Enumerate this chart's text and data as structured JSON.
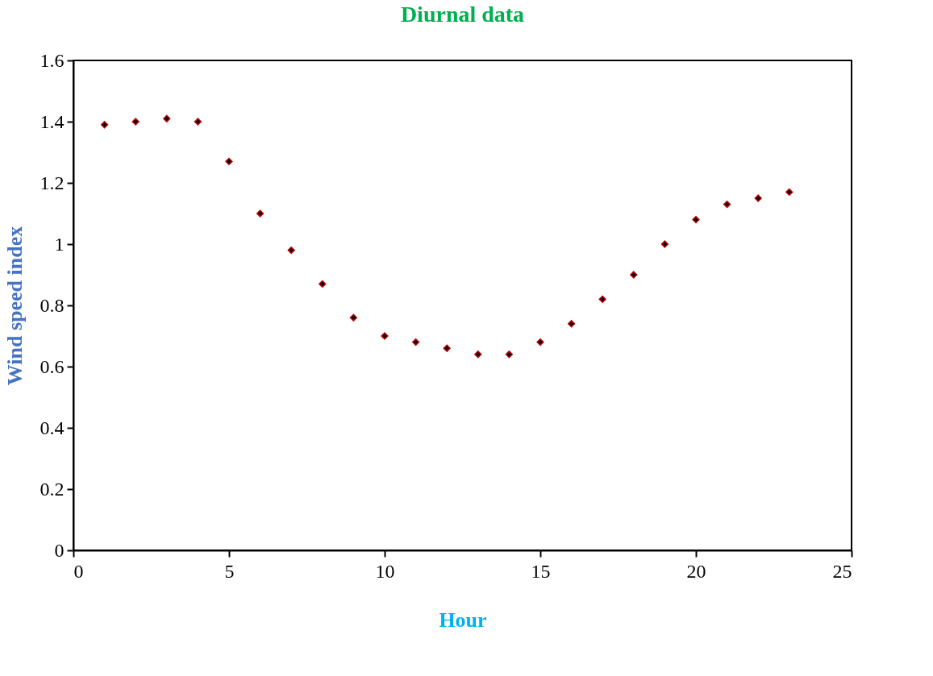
{
  "chart_data": {
    "type": "scatter",
    "title": "Diurnal data",
    "xlabel": "Hour",
    "ylabel": "Wind speed index",
    "x": [
      1,
      2,
      3,
      4,
      5,
      6,
      7,
      8,
      9,
      10,
      11,
      12,
      13,
      14,
      15,
      16,
      17,
      18,
      19,
      20,
      21,
      22,
      23
    ],
    "series": [
      {
        "color": "#000000",
        "values": [
          1.39,
          1.4,
          1.41,
          1.4,
          1.27,
          1.1,
          0.98,
          0.87,
          0.76,
          0.7,
          0.68,
          0.66,
          0.64,
          0.64,
          0.68,
          0.74,
          0.82,
          0.9,
          1.0,
          1.08,
          1.13,
          1.15,
          1.17
        ]
      }
    ],
    "xlim": [
      0,
      25
    ],
    "xticks": [
      0,
      5,
      10,
      15,
      20,
      25
    ],
    "ylim": [
      0,
      1.6
    ],
    "yticks": [
      0,
      0.2,
      0.4,
      0.6,
      0.8,
      1,
      1.2,
      1.4,
      1.6
    ],
    "marker": "diamond",
    "grid": false
  }
}
